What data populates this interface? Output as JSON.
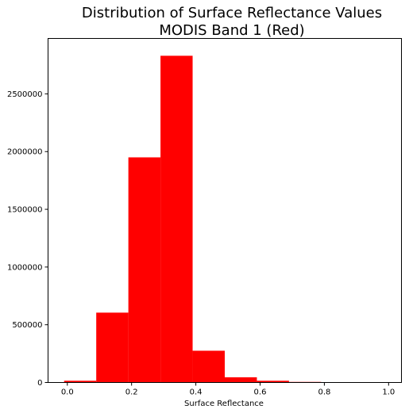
{
  "chart_data": {
    "type": "bar",
    "title": "Distribution of Surface Reflectance Values",
    "subtitle": "MODIS Band 1 (Red)",
    "xlabel": "Surface Reflectance",
    "ylabel": "",
    "bin_edges": [
      -0.01,
      0.09,
      0.19,
      0.29,
      0.39,
      0.49,
      0.59,
      0.69,
      0.79,
      0.89,
      0.99
    ],
    "values": [
      15000,
      605000,
      1950000,
      2830000,
      275000,
      45000,
      15000,
      5000,
      3000,
      1000
    ],
    "xlim": [
      -0.06,
      1.04
    ],
    "ylim": [
      0,
      2980000
    ],
    "xticks": [
      0.0,
      0.2,
      0.4,
      0.6,
      0.8,
      1.0
    ],
    "xtick_labels": [
      "0.0",
      "0.2",
      "0.4",
      "0.6",
      "0.8",
      "1.0"
    ],
    "yticks": [
      0,
      500000,
      1000000,
      1500000,
      2000000,
      2500000
    ],
    "ytick_labels": [
      "0",
      "500000",
      "1000000",
      "1500000",
      "2000000",
      "2500000"
    ],
    "bar_color": "#ff0000",
    "grid": false,
    "legend": "none"
  }
}
